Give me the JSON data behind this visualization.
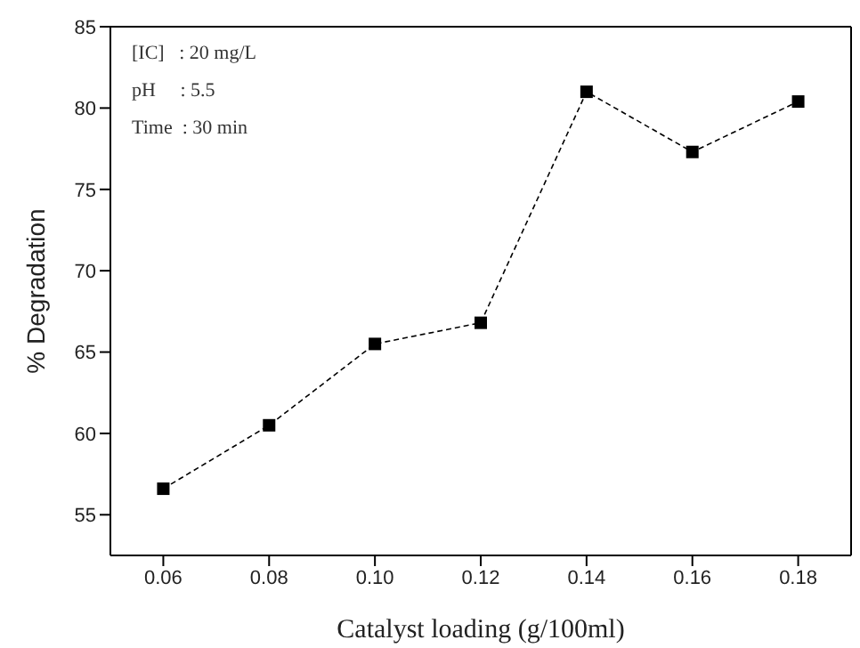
{
  "chart_data": {
    "type": "line",
    "xlabel": "Catalyst loading (g/100ml)",
    "ylabel": "% Degradation",
    "x": [
      0.06,
      0.08,
      0.1,
      0.12,
      0.14,
      0.16,
      0.18
    ],
    "series": [
      {
        "color": "#000000",
        "values": [
          56.6,
          60.5,
          65.5,
          66.8,
          81.0,
          77.3,
          80.4
        ]
      }
    ],
    "xlim": [
      0.05,
      0.19
    ],
    "xticks": [
      {
        "value": 0.06,
        "label": "0.06"
      },
      {
        "value": 0.08,
        "label": "0.08"
      },
      {
        "value": 0.1,
        "label": "0.10"
      },
      {
        "value": 0.12,
        "label": "0.12"
      },
      {
        "value": 0.14,
        "label": "0.14"
      },
      {
        "value": 0.16,
        "label": "0.16"
      },
      {
        "value": 0.18,
        "label": "0.18"
      }
    ],
    "ylim": [
      52.5,
      85
    ],
    "yticks": [
      55,
      60,
      65,
      70,
      75,
      80,
      85
    ],
    "annotations": [
      "[IC]   : 20 mg/L",
      "pH     : 5.5",
      "Time  : 30 min"
    ],
    "marker": "square",
    "line_style": "dashed",
    "grid": false,
    "legend": false
  }
}
